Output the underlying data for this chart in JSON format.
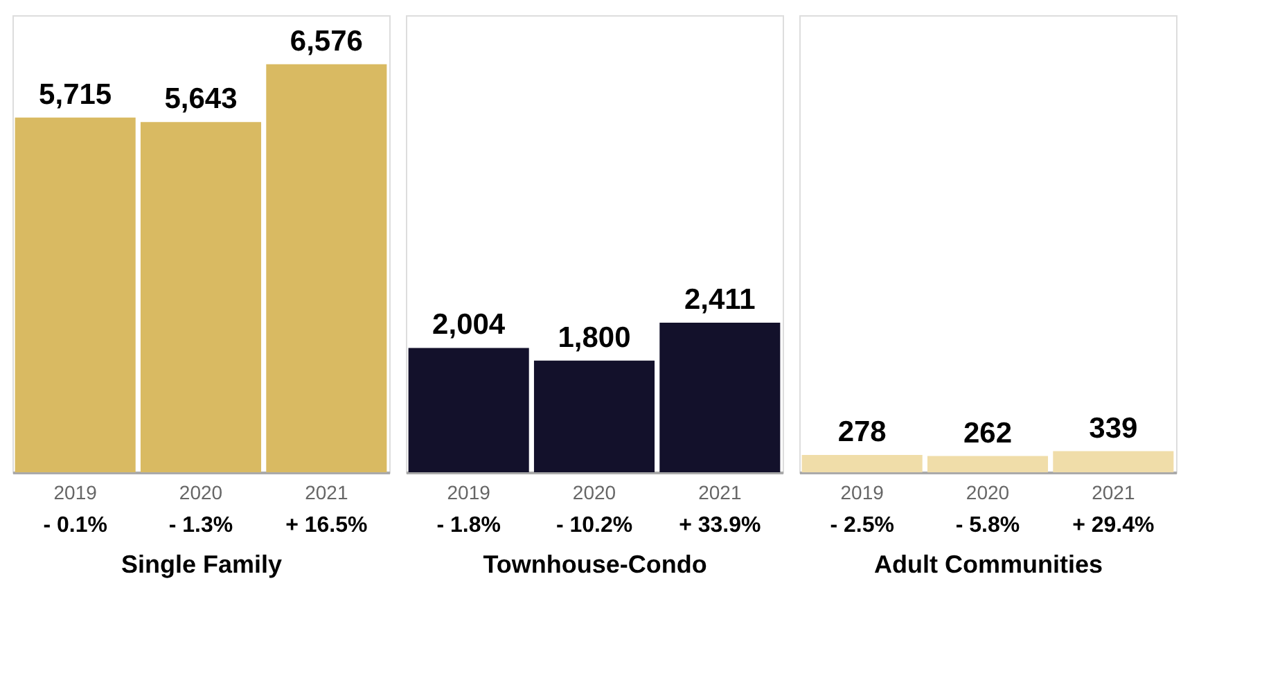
{
  "chart_data": [
    {
      "type": "bar",
      "xlabel": "Single Family",
      "categories": [
        "2019",
        "2020",
        "2021"
      ],
      "values": [
        5715,
        5643,
        6576
      ],
      "value_labels": [
        "5,715",
        "5,643",
        "6,576"
      ],
      "colors": [
        "#d9ba62",
        "#d9ba62",
        "#d9ba62"
      ],
      "tick_labels": "x",
      "annotations": [
        "- 0.1%",
        "- 1.3%",
        "+ 16.5%"
      ]
    },
    {
      "type": "bar",
      "xlabel": "Townhouse-Condo",
      "categories": [
        "2019",
        "2020",
        "2021"
      ],
      "values": [
        2004,
        1800,
        2411
      ],
      "value_labels": [
        "2,004",
        "1,800",
        "2,411"
      ],
      "colors": [
        "#13112b",
        "#13112b",
        "#13112b"
      ],
      "tick_labels": "x",
      "annotations": [
        "- 1.8%",
        "- 10.2%",
        "+ 33.9%"
      ]
    },
    {
      "type": "bar",
      "xlabel": "Adult Communities",
      "categories": [
        "2019",
        "2020",
        "2021"
      ],
      "values": [
        278,
        262,
        339
      ],
      "value_labels": [
        "278",
        "262",
        "339"
      ],
      "colors": [
        "#f0dda9",
        "#f0dda9",
        "#f0dda9"
      ],
      "tick_labels": "x",
      "annotations": [
        "- 2.5%",
        "- 5.8%",
        "+ 29.4%"
      ]
    }
  ]
}
